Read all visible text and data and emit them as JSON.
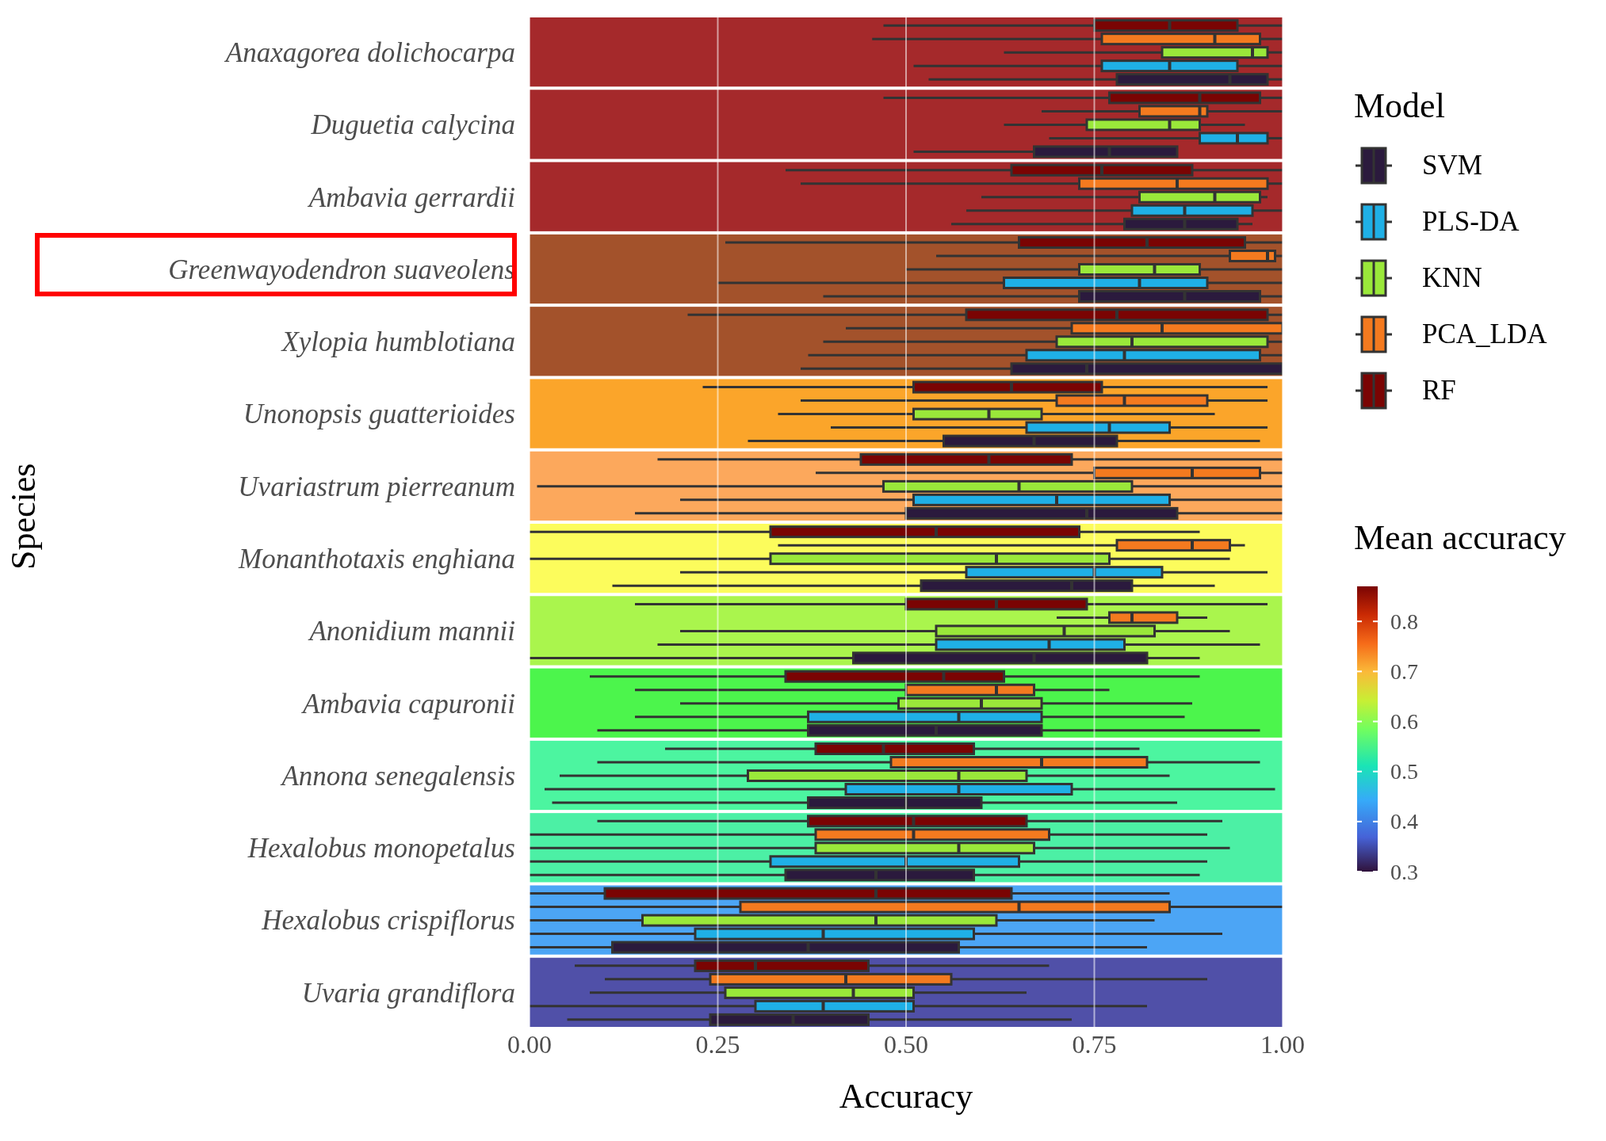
{
  "chart_data": {
    "type": "box",
    "orientation": "horizontal",
    "xlabel": "Accuracy",
    "ylabel": "Species",
    "legend": "right",
    "legend_title": "Model",
    "clabel": "Mean accuracy",
    "clim": [
      0.3,
      0.87
    ],
    "cticks": [
      0.3,
      0.4,
      0.5,
      0.6,
      0.7,
      0.8
    ],
    "grid": "x",
    "xlim": [
      0,
      1
    ],
    "xticks": [
      {
        "value": 0,
        "label": "0.00"
      },
      {
        "value": 0.25,
        "label": "0.25"
      },
      {
        "value": 0.5,
        "label": "0.50"
      },
      {
        "value": 0.75,
        "label": "0.75"
      },
      {
        "value": 1,
        "label": "1.00"
      }
    ],
    "categories": [
      "Anaxagorea dolichocarpa",
      "Duguetia calycina",
      "Ambavia gerrardii",
      "Greenwayodendron suaveolens",
      "Xylopia humblotiana",
      "Unonopsis guatterioides",
      "Uvariastrum pierreanum",
      "Monanthotaxis enghiana",
      "Anonidium mannii",
      "Ambavia capuronii",
      "Annona senegalensis",
      "Hexalobus monopetalus",
      "Hexalobus crispiflorus",
      "Uvaria grandiflora"
    ],
    "bands": [
      {
        "axis": "y",
        "from": "Anaxagorea dolichocarpa",
        "to": "Anaxagorea dolichocarpa",
        "color": "#a5292b"
      },
      {
        "axis": "y",
        "from": "Duguetia calycina",
        "to": "Duguetia calycina",
        "color": "#a5292b"
      },
      {
        "axis": "y",
        "from": "Ambavia gerrardii",
        "to": "Ambavia gerrardii",
        "color": "#a5292b"
      },
      {
        "axis": "y",
        "from": "Greenwayodendron suaveolens",
        "to": "Greenwayodendron suaveolens",
        "color": "#a3522b"
      },
      {
        "axis": "y",
        "from": "Xylopia humblotiana",
        "to": "Xylopia humblotiana",
        "color": "#a3522b"
      },
      {
        "axis": "y",
        "from": "Unonopsis guatterioides",
        "to": "Unonopsis guatterioides",
        "color": "#fba52a"
      },
      {
        "axis": "y",
        "from": "Uvariastrum pierreanum",
        "to": "Uvariastrum pierreanum",
        "color": "#fca85c"
      },
      {
        "axis": "y",
        "from": "Monanthotaxis enghiana",
        "to": "Monanthotaxis enghiana",
        "color": "#fcfc5c"
      },
      {
        "axis": "y",
        "from": "Anonidium mannii",
        "to": "Anonidium mannii",
        "color": "#aaf54d"
      },
      {
        "axis": "y",
        "from": "Ambavia capuronii",
        "to": "Ambavia capuronii",
        "color": "#4cf54c"
      },
      {
        "axis": "y",
        "from": "Annona senegalensis",
        "to": "Annona senegalensis",
        "color": "#4cf5a0"
      },
      {
        "axis": "y",
        "from": "Hexalobus monopetalus",
        "to": "Hexalobus monopetalus",
        "color": "#4cf0a5"
      },
      {
        "axis": "y",
        "from": "Hexalobus crispiflorus",
        "to": "Hexalobus crispiflorus",
        "color": "#4ca5f5"
      },
      {
        "axis": "y",
        "from": "Uvaria grandiflora",
        "to": "Uvaria grandiflora",
        "color": "#5050a8"
      }
    ],
    "series": [
      {
        "name": "SVM",
        "color": "#2b1a3d",
        "boxes": [
          {
            "low": 0.53,
            "q1": 0.78,
            "median": 0.93,
            "q3": 0.98,
            "high": 1.0
          },
          {
            "low": 0.51,
            "q1": 0.67,
            "median": 0.77,
            "q3": 0.86,
            "high": 0.86
          },
          {
            "low": 0.56,
            "q1": 0.79,
            "median": 0.87,
            "q3": 0.94,
            "high": 0.96
          },
          {
            "low": 0.39,
            "q1": 0.73,
            "median": 0.87,
            "q3": 0.97,
            "high": 1.0
          },
          {
            "low": 0.36,
            "q1": 0.64,
            "median": 0.74,
            "q3": 1.0,
            "high": 1.0
          },
          {
            "low": 0.29,
            "q1": 0.55,
            "median": 0.67,
            "q3": 0.78,
            "high": 0.97
          },
          {
            "low": 0.14,
            "q1": 0.5,
            "median": 0.74,
            "q3": 0.86,
            "high": 1.0
          },
          {
            "low": 0.11,
            "q1": 0.52,
            "median": 0.72,
            "q3": 0.8,
            "high": 0.91
          },
          {
            "low": 0.0,
            "q1": 0.43,
            "median": 0.67,
            "q3": 0.82,
            "high": 0.89
          },
          {
            "low": 0.09,
            "q1": 0.37,
            "median": 0.54,
            "q3": 0.68,
            "high": 0.97
          },
          {
            "low": 0.03,
            "q1": 0.37,
            "median": 0.5,
            "q3": 0.6,
            "high": 0.86
          },
          {
            "low": 0.0,
            "q1": 0.34,
            "median": 0.46,
            "q3": 0.59,
            "high": 0.89
          },
          {
            "low": 0.0,
            "q1": 0.11,
            "median": 0.37,
            "q3": 0.57,
            "high": 0.82
          },
          {
            "low": 0.05,
            "q1": 0.24,
            "median": 0.35,
            "q3": 0.45,
            "high": 0.72
          }
        ]
      },
      {
        "name": "PLS-DA",
        "color": "#1fb0e6",
        "boxes": [
          {
            "low": 0.51,
            "q1": 0.76,
            "median": 0.85,
            "q3": 0.94,
            "high": 1.0
          },
          {
            "low": 0.69,
            "q1": 0.89,
            "median": 0.94,
            "q3": 0.98,
            "high": 1.0
          },
          {
            "low": 0.58,
            "q1": 0.8,
            "median": 0.87,
            "q3": 0.96,
            "high": 1.0
          },
          {
            "low": 0.25,
            "q1": 0.63,
            "median": 0.81,
            "q3": 0.9,
            "high": 1.0
          },
          {
            "low": 0.37,
            "q1": 0.66,
            "median": 0.79,
            "q3": 0.97,
            "high": 1.0
          },
          {
            "low": 0.4,
            "q1": 0.66,
            "median": 0.77,
            "q3": 0.85,
            "high": 0.98
          },
          {
            "low": 0.2,
            "q1": 0.51,
            "median": 0.7,
            "q3": 0.85,
            "high": 1.0
          },
          {
            "low": 0.2,
            "q1": 0.58,
            "median": 0.75,
            "q3": 0.84,
            "high": 0.98
          },
          {
            "low": 0.17,
            "q1": 0.54,
            "median": 0.69,
            "q3": 0.79,
            "high": 0.97
          },
          {
            "low": 0.14,
            "q1": 0.37,
            "median": 0.57,
            "q3": 0.68,
            "high": 0.87
          },
          {
            "low": 0.02,
            "q1": 0.42,
            "median": 0.57,
            "q3": 0.72,
            "high": 0.99
          },
          {
            "low": 0.0,
            "q1": 0.32,
            "median": 0.5,
            "q3": 0.65,
            "high": 0.9
          },
          {
            "low": 0.0,
            "q1": 0.22,
            "median": 0.39,
            "q3": 0.59,
            "high": 0.92
          },
          {
            "low": 0.0,
            "q1": 0.3,
            "median": 0.39,
            "q3": 0.51,
            "high": 0.82
          }
        ]
      },
      {
        "name": "KNN",
        "color": "#9ae83a",
        "boxes": [
          {
            "low": 0.63,
            "q1": 0.84,
            "median": 0.96,
            "q3": 0.98,
            "high": 1.0
          },
          {
            "low": 0.63,
            "q1": 0.74,
            "median": 0.85,
            "q3": 0.89,
            "high": 0.95
          },
          {
            "low": 0.6,
            "q1": 0.81,
            "median": 0.91,
            "q3": 0.97,
            "high": 0.98
          },
          {
            "low": 0.5,
            "q1": 0.73,
            "median": 0.83,
            "q3": 0.89,
            "high": 1.0
          },
          {
            "low": 0.39,
            "q1": 0.7,
            "median": 0.8,
            "q3": 0.98,
            "high": 1.0
          },
          {
            "low": 0.33,
            "q1": 0.51,
            "median": 0.61,
            "q3": 0.68,
            "high": 0.91
          },
          {
            "low": 0.01,
            "q1": 0.47,
            "median": 0.65,
            "q3": 0.8,
            "high": 1.0
          },
          {
            "low": 0.0,
            "q1": 0.32,
            "median": 0.62,
            "q3": 0.77,
            "high": 0.93
          },
          {
            "low": 0.2,
            "q1": 0.54,
            "median": 0.71,
            "q3": 0.83,
            "high": 0.93
          },
          {
            "low": 0.2,
            "q1": 0.49,
            "median": 0.6,
            "q3": 0.68,
            "high": 0.88
          },
          {
            "low": 0.04,
            "q1": 0.29,
            "median": 0.57,
            "q3": 0.66,
            "high": 0.85
          },
          {
            "low": 0.0,
            "q1": 0.38,
            "median": 0.57,
            "q3": 0.67,
            "high": 0.93
          },
          {
            "low": 0.0,
            "q1": 0.15,
            "median": 0.46,
            "q3": 0.62,
            "high": 0.83
          },
          {
            "low": 0.08,
            "q1": 0.26,
            "median": 0.43,
            "q3": 0.51,
            "high": 0.66
          }
        ]
      },
      {
        "name": "PCA_LDA",
        "color": "#f47a1f",
        "boxes": [
          {
            "low": 0.455,
            "q1": 0.76,
            "median": 0.91,
            "q3": 0.97,
            "high": 1.0
          },
          {
            "low": 0.68,
            "q1": 0.81,
            "median": 0.89,
            "q3": 0.9,
            "high": 1.0
          },
          {
            "low": 0.36,
            "q1": 0.73,
            "median": 0.86,
            "q3": 0.98,
            "high": 1.0
          },
          {
            "low": 0.54,
            "q1": 0.93,
            "median": 0.98,
            "q3": 0.99,
            "high": 1.0
          },
          {
            "low": 0.42,
            "q1": 0.72,
            "median": 0.84,
            "q3": 1.0,
            "high": 1.0
          },
          {
            "low": 0.36,
            "q1": 0.7,
            "median": 0.79,
            "q3": 0.9,
            "high": 0.98
          },
          {
            "low": 0.38,
            "q1": 0.75,
            "median": 0.88,
            "q3": 0.97,
            "high": 1.0
          },
          {
            "low": 0.33,
            "q1": 0.78,
            "median": 0.88,
            "q3": 0.93,
            "high": 0.95
          },
          {
            "low": 0.7,
            "q1": 0.77,
            "median": 0.8,
            "q3": 0.86,
            "high": 0.9
          },
          {
            "low": 0.14,
            "q1": 0.5,
            "median": 0.62,
            "q3": 0.67,
            "high": 0.77
          },
          {
            "low": 0.09,
            "q1": 0.48,
            "median": 0.68,
            "q3": 0.82,
            "high": 0.97
          },
          {
            "low": 0.0,
            "q1": 0.38,
            "median": 0.51,
            "q3": 0.69,
            "high": 0.9
          },
          {
            "low": 0.0,
            "q1": 0.28,
            "median": 0.65,
            "q3": 0.85,
            "high": 1.0
          },
          {
            "low": 0.1,
            "q1": 0.24,
            "median": 0.42,
            "q3": 0.56,
            "high": 0.9
          }
        ]
      },
      {
        "name": "RF",
        "color": "#7a0403",
        "boxes": [
          {
            "low": 0.47,
            "q1": 0.75,
            "median": 0.85,
            "q3": 0.94,
            "high": 1.0
          },
          {
            "low": 0.47,
            "q1": 0.77,
            "median": 0.89,
            "q3": 0.97,
            "high": 1.0
          },
          {
            "low": 0.34,
            "q1": 0.64,
            "median": 0.76,
            "q3": 0.88,
            "high": 1.0
          },
          {
            "low": 0.26,
            "q1": 0.65,
            "median": 0.82,
            "q3": 0.95,
            "high": 1.0
          },
          {
            "low": 0.21,
            "q1": 0.58,
            "median": 0.78,
            "q3": 0.98,
            "high": 1.0
          },
          {
            "low": 0.23,
            "q1": 0.51,
            "median": 0.64,
            "q3": 0.76,
            "high": 0.98
          },
          {
            "low": 0.17,
            "q1": 0.44,
            "median": 0.61,
            "q3": 0.72,
            "high": 1.0
          },
          {
            "low": 0.0,
            "q1": 0.32,
            "median": 0.54,
            "q3": 0.73,
            "high": 0.89
          },
          {
            "low": 0.14,
            "q1": 0.5,
            "median": 0.62,
            "q3": 0.74,
            "high": 0.98
          },
          {
            "low": 0.08,
            "q1": 0.34,
            "median": 0.55,
            "q3": 0.63,
            "high": 0.89
          },
          {
            "low": 0.18,
            "q1": 0.38,
            "median": 0.47,
            "q3": 0.59,
            "high": 0.81
          },
          {
            "low": 0.09,
            "q1": 0.37,
            "median": 0.51,
            "q3": 0.66,
            "high": 0.92
          },
          {
            "low": 0.0,
            "q1": 0.1,
            "median": 0.46,
            "q3": 0.64,
            "high": 0.85
          },
          {
            "low": 0.06,
            "q1": 0.22,
            "median": 0.3,
            "q3": 0.45,
            "high": 0.69
          }
        ]
      }
    ]
  }
}
